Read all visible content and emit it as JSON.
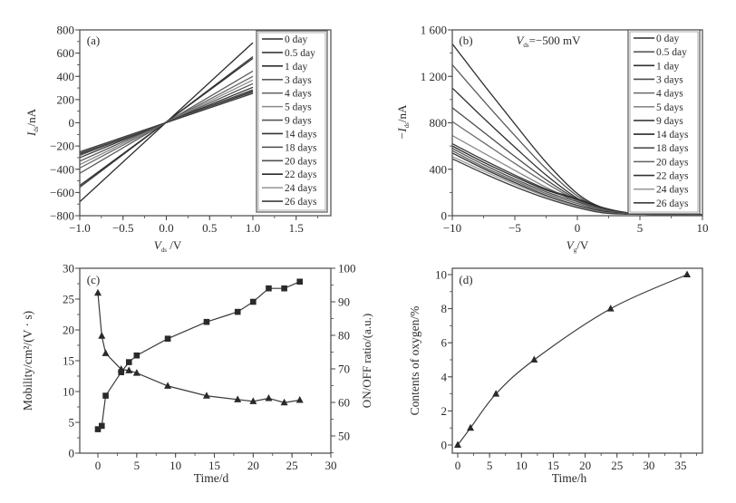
{
  "figure": {
    "panels": [
      "a",
      "b",
      "c",
      "d"
    ]
  },
  "chart_data": [
    {
      "id": "a",
      "type": "line",
      "panel_label": "(a)",
      "title": "",
      "xlabel": "V_ds /V",
      "xlabel_main": "V",
      "xlabel_sub": "ds",
      "xlabel_unit": " /V",
      "ylabel": "I_ds/nA",
      "ylabel_main": "I",
      "ylabel_sub": "ds",
      "ylabel_unit": "/nA",
      "xlim": [
        -1.0,
        1.8
      ],
      "ylim": [
        -800,
        800
      ],
      "xticks": [
        -1.0,
        -0.5,
        0.0,
        0.5,
        1.0,
        1.5
      ],
      "xtick_labels": [
        "−1.0",
        "−0.5",
        "0.0",
        "0.5",
        "1.0",
        "1.5"
      ],
      "yticks": [
        -800,
        -600,
        -400,
        -200,
        0,
        200,
        400,
        600,
        800
      ],
      "ytick_labels": [
        "−800",
        "−600",
        "−400",
        "−200",
        "0",
        "200",
        "400",
        "600",
        "800"
      ],
      "legend_position": "right",
      "grid": false,
      "series": [
        {
          "name": "0 day",
          "color": "#2b2b2b",
          "x": [
            -1.0,
            1.0
          ],
          "y": [
            -680,
            690
          ]
        },
        {
          "name": "0.5 day",
          "color": "#3a3a3a",
          "x": [
            -1.0,
            1.0
          ],
          "y": [
            -555,
            570
          ]
        },
        {
          "name": "1 day",
          "color": "#2f2f2f",
          "x": [
            -1.0,
            1.0
          ],
          "y": [
            -540,
            555
          ]
        },
        {
          "name": "3 days",
          "color": "#5a5a5a",
          "x": [
            -1.0,
            1.0
          ],
          "y": [
            -435,
            445
          ]
        },
        {
          "name": "4 days",
          "color": "#6a6a6a",
          "x": [
            -1.0,
            1.0
          ],
          "y": [
            -390,
            400
          ]
        },
        {
          "name": "5 days",
          "color": "#8a8a8a",
          "x": [
            -1.0,
            1.0
          ],
          "y": [
            -360,
            368
          ]
        },
        {
          "name": "9 days",
          "color": "#555555",
          "x": [
            -1.0,
            1.0
          ],
          "y": [
            -330,
            337
          ]
        },
        {
          "name": "14 days",
          "color": "#333333",
          "x": [
            -1.0,
            1.0
          ],
          "y": [
            -300,
            306
          ]
        },
        {
          "name": "18 days",
          "color": "#4a4a4a",
          "x": [
            -1.0,
            1.0
          ],
          "y": [
            -280,
            285
          ]
        },
        {
          "name": "20 days",
          "color": "#505050",
          "x": [
            -1.0,
            1.0
          ],
          "y": [
            -270,
            274
          ]
        },
        {
          "name": "22 days",
          "color": "#2a2a2a",
          "x": [
            -1.0,
            1.0
          ],
          "y": [
            -262,
            266
          ]
        },
        {
          "name": "24 days",
          "color": "#9a9a9a",
          "x": [
            -1.0,
            1.0
          ],
          "y": [
            -255,
            259
          ]
        },
        {
          "name": "26 days",
          "color": "#3c3c3c",
          "x": [
            -1.0,
            1.0
          ],
          "y": [
            -250,
            254
          ]
        }
      ]
    },
    {
      "id": "b",
      "type": "line",
      "panel_label": "(b)",
      "title": "",
      "annotation": "V_ds=−500 mV",
      "annotation_main": "V",
      "annotation_sub": "ds",
      "annotation_rest": "=−500 mV",
      "xlabel": "V_g/V",
      "xlabel_main": "V",
      "xlabel_sub": "g",
      "xlabel_unit": "/V",
      "ylabel": "−I_ds/nA",
      "ylabel_main": "−I",
      "ylabel_sub": "ds",
      "ylabel_unit": "/nA",
      "xlim": [
        -10,
        10
      ],
      "ylim": [
        0,
        1600
      ],
      "xticks": [
        -10,
        -5,
        0,
        5,
        10
      ],
      "xtick_labels": [
        "−10",
        "−5",
        "0",
        "5",
        "10"
      ],
      "yticks": [
        0,
        400,
        800,
        1200,
        1600
      ],
      "ytick_labels": [
        "0",
        "400",
        "800",
        "1 200",
        "1 600"
      ],
      "legend_position": "right",
      "grid": false,
      "series": [
        {
          "name": "0 day",
          "color": "#2b2b2b",
          "x": [
            -10,
            -7.5,
            -5,
            -2.5,
            0,
            2,
            4,
            6,
            10
          ],
          "y": [
            1480,
            1130,
            790,
            460,
            190,
            70,
            25,
            12,
            10
          ]
        },
        {
          "name": "0.5 day",
          "color": "#5a5a5a",
          "x": [
            -10,
            -7.5,
            -5,
            -2.5,
            0,
            2,
            4,
            6,
            10
          ],
          "y": [
            1300,
            990,
            690,
            405,
            170,
            65,
            25,
            12,
            10
          ]
        },
        {
          "name": "1 day",
          "color": "#303030",
          "x": [
            -10,
            -7.5,
            -5,
            -2.5,
            0,
            2,
            4,
            6,
            10
          ],
          "y": [
            1100,
            840,
            590,
            350,
            150,
            60,
            24,
            12,
            10
          ]
        },
        {
          "name": "3 days",
          "color": "#4a4a4a",
          "x": [
            -10,
            -7.5,
            -5,
            -2.5,
            0,
            2,
            4,
            6,
            10
          ],
          "y": [
            930,
            720,
            510,
            310,
            140,
            60,
            24,
            12,
            10
          ]
        },
        {
          "name": "4 days",
          "color": "#6a6a6a",
          "x": [
            -10,
            -7.5,
            -5,
            -2.5,
            0,
            2,
            4,
            6,
            10
          ],
          "y": [
            810,
            630,
            450,
            280,
            130,
            58,
            24,
            12,
            10
          ]
        },
        {
          "name": "5 days",
          "color": "#8a8a8a",
          "x": [
            -10,
            -7.5,
            -5,
            -2.5,
            0,
            2,
            4,
            6,
            10
          ],
          "y": [
            690,
            540,
            390,
            245,
            120,
            55,
            22,
            12,
            10
          ]
        },
        {
          "name": "9 days",
          "color": "#3a3a3a",
          "x": [
            -10,
            -7.5,
            -5,
            -2.5,
            0,
            2,
            4,
            6,
            10
          ],
          "y": [
            620,
            480,
            350,
            230,
            145,
            70,
            25,
            12,
            10
          ]
        },
        {
          "name": "14 days",
          "color": "#2a2a2a",
          "x": [
            -10,
            -7.5,
            -5,
            -2.5,
            0,
            2,
            4,
            6,
            10
          ],
          "y": [
            600,
            460,
            335,
            220,
            140,
            70,
            25,
            12,
            10
          ]
        },
        {
          "name": "18 days",
          "color": "#505050",
          "x": [
            -10,
            -7.5,
            -5,
            -2.5,
            0,
            2,
            4,
            6,
            10
          ],
          "y": [
            580,
            440,
            315,
            205,
            120,
            55,
            22,
            12,
            10
          ]
        },
        {
          "name": "20 days",
          "color": "#606060",
          "x": [
            -10,
            -7.5,
            -5,
            -2.5,
            0,
            2,
            4,
            6,
            10
          ],
          "y": [
            560,
            420,
            300,
            190,
            105,
            45,
            20,
            12,
            10
          ]
        },
        {
          "name": "22 days",
          "color": "#333333",
          "x": [
            -10,
            -7.5,
            -5,
            -2.5,
            0,
            2,
            4,
            6,
            10
          ],
          "y": [
            540,
            405,
            285,
            175,
            90,
            38,
            18,
            12,
            10
          ]
        },
        {
          "name": "24 days",
          "color": "#9a9a9a",
          "x": [
            -10,
            -7.5,
            -5,
            -2.5,
            0,
            2,
            4,
            6,
            10
          ],
          "y": [
            510,
            385,
            270,
            165,
            80,
            30,
            15,
            12,
            10
          ]
        },
        {
          "name": "26 days",
          "color": "#3c3c3c",
          "x": [
            -10,
            -7.5,
            -5,
            -2.5,
            0,
            2,
            4,
            6,
            10
          ],
          "y": [
            490,
            365,
            250,
            150,
            70,
            25,
            14,
            12,
            10
          ]
        }
      ]
    },
    {
      "id": "c",
      "type": "line",
      "panel_label": "(c)",
      "title": "",
      "xlabel": "Time/d",
      "ylabel": "Mobility/cm²/(V · s)",
      "y2label": "ON/OFF ratio/(a.u.)",
      "xlim": [
        -2.3,
        30
      ],
      "ylim": [
        0,
        30
      ],
      "y2lim": [
        45,
        100
      ],
      "xticks": [
        0,
        5,
        10,
        15,
        20,
        25,
        30
      ],
      "xtick_labels": [
        "0",
        "5",
        "10",
        "15",
        "20",
        "25",
        "30"
      ],
      "yticks": [
        0,
        5,
        10,
        15,
        20,
        25,
        30
      ],
      "ytick_labels": [
        "0",
        "5",
        "10",
        "15",
        "20",
        "25",
        "30"
      ],
      "y2ticks": [
        50,
        60,
        70,
        80,
        90,
        100
      ],
      "y2tick_labels": [
        "50",
        "60",
        "70",
        "80",
        "90",
        "100"
      ],
      "grid": false,
      "series": [
        {
          "name": "Mobility",
          "axis": "left",
          "marker": "triangle",
          "x": [
            0,
            0.5,
            1,
            3,
            4,
            5,
            9,
            14,
            18,
            20,
            22,
            24,
            26
          ],
          "y": [
            26.0,
            19.0,
            16.2,
            13.6,
            13.4,
            13.0,
            10.9,
            9.3,
            8.7,
            8.4,
            8.9,
            8.2,
            8.6
          ]
        },
        {
          "name": "ON/OFF ratio",
          "axis": "right",
          "marker": "square",
          "x": [
            0,
            0.5,
            1,
            3,
            4,
            5,
            9,
            14,
            18,
            20,
            22,
            24,
            26
          ],
          "y": [
            52,
            53,
            62,
            69,
            72,
            74,
            79,
            84,
            87,
            90,
            94,
            94,
            96
          ]
        }
      ]
    },
    {
      "id": "d",
      "type": "line",
      "panel_label": "(d)",
      "title": "",
      "xlabel": "Time/h",
      "ylabel": "Contents of oxygen/%",
      "xlim": [
        -1,
        38
      ],
      "ylim": [
        -0.5,
        10.5
      ],
      "xticks": [
        0,
        5,
        10,
        15,
        20,
        25,
        30,
        35
      ],
      "xtick_labels": [
        "0",
        "5",
        "10",
        "15",
        "20",
        "25",
        "30",
        "35"
      ],
      "yticks": [
        0,
        2,
        4,
        6,
        8,
        10
      ],
      "ytick_labels": [
        "0",
        "2",
        "4",
        "6",
        "8",
        "10"
      ],
      "grid": false,
      "series": [
        {
          "name": "Oxygen content",
          "marker": "triangle",
          "x": [
            0,
            2,
            6,
            12,
            24,
            36
          ],
          "y": [
            0,
            1,
            3,
            5,
            8,
            10
          ]
        }
      ]
    }
  ]
}
